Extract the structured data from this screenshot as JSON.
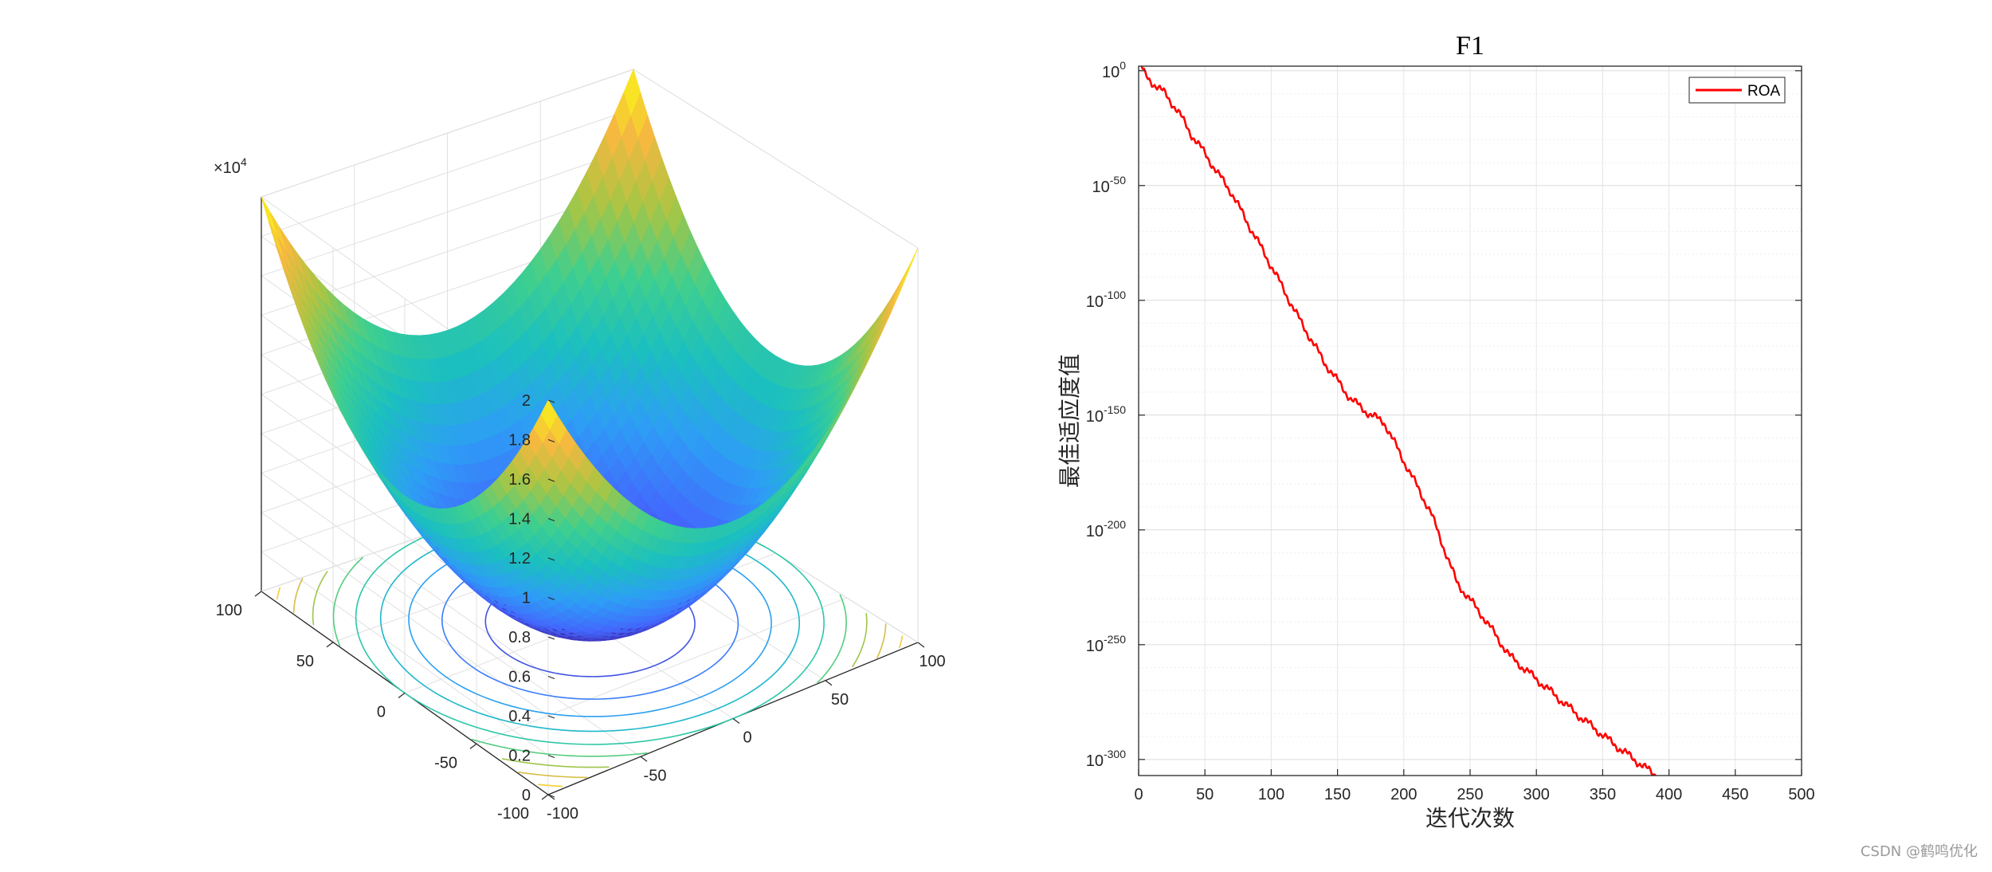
{
  "chart_data": [
    {
      "type": "surface",
      "function": "x^2 + y^2",
      "x_range": [
        -100,
        100
      ],
      "y_range": [
        -100,
        100
      ],
      "z_range": [
        0,
        20000
      ],
      "z_exponent_label": "×10",
      "z_exponent_power": "4",
      "z_ticks": [
        "0",
        "0.2",
        "0.4",
        "0.6",
        "0.8",
        "1",
        "1.2",
        "1.4",
        "1.6",
        "1.8",
        "2"
      ],
      "x_ticks": [
        "-100",
        "-50",
        "0",
        "50",
        "100"
      ],
      "y_ticks": [
        "-100",
        "-50",
        "0",
        "50",
        "100"
      ],
      "contour_levels": [
        2000,
        4000,
        6000,
        8000,
        10000,
        12000,
        14000,
        16000,
        18000
      ],
      "colormap": [
        "#3e26a8",
        "#4367fd",
        "#2e9df6",
        "#1bbfc0",
        "#3fcf8e",
        "#a8c544",
        "#f5b940",
        "#f9fb15"
      ],
      "grid": true
    },
    {
      "type": "line",
      "title": "F1",
      "xlabel": "迭代次数",
      "ylabel": "最佳适应度值",
      "xlim": [
        0,
        500
      ],
      "ylim_log10": [
        -307,
        2
      ],
      "y_scale": "log",
      "x_ticks": [
        "0",
        "50",
        "100",
        "150",
        "200",
        "250",
        "300",
        "350",
        "400",
        "450",
        "500"
      ],
      "y_tick_base": "10",
      "y_tick_exponents": [
        "0",
        "-50",
        "-100",
        "-150",
        "-200",
        "-250",
        "-300"
      ],
      "legend_position": "top-right",
      "grid": true,
      "series": [
        {
          "name": "ROA",
          "color": "#ff0000",
          "x": [
            1,
            5,
            10,
            20,
            30,
            40,
            50,
            60,
            70,
            80,
            100,
            120,
            140,
            160,
            175,
            185,
            200,
            220,
            240,
            260,
            280,
            300,
            330,
            360,
            390
          ],
          "log10_y": [
            3,
            -2,
            -5,
            -10,
            -18,
            -28,
            -36,
            -45,
            -53,
            -64,
            -85,
            -107,
            -127,
            -143,
            -150,
            -153,
            -170,
            -192,
            -223,
            -238,
            -255,
            -265,
            -280,
            -294,
            -307
          ]
        }
      ]
    }
  ],
  "watermark": "CSDN @鹤鸣优化"
}
